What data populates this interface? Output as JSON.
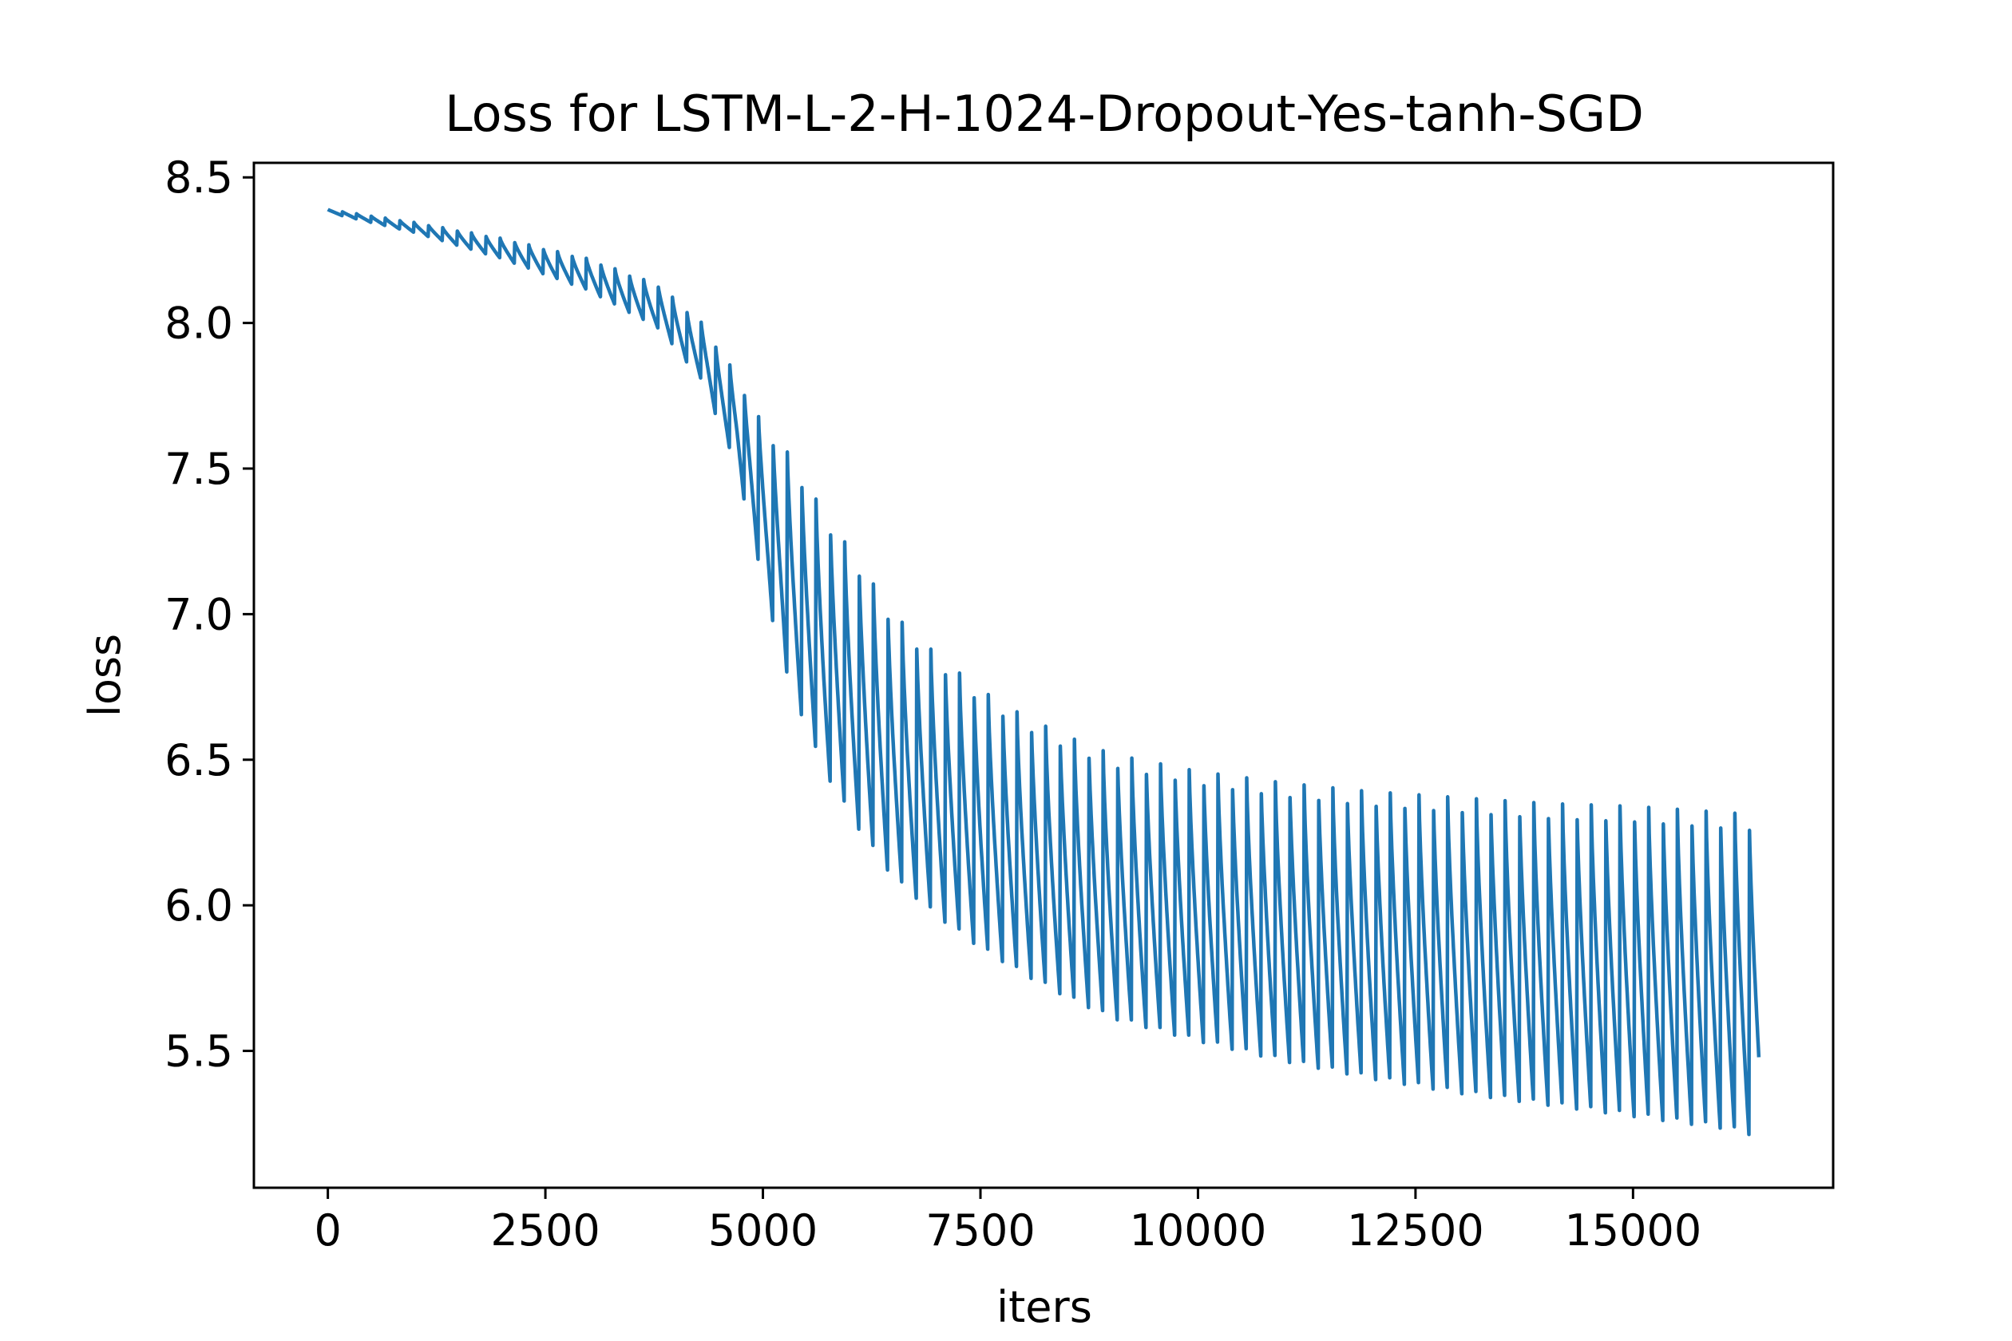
{
  "chart_data": {
    "type": "line",
    "title": "Loss for LSTM-L-2-H-1024-Dropout-Yes-tanh-SGD",
    "xlabel": "iters",
    "ylabel": "loss",
    "xlim": [
      -850,
      17300
    ],
    "ylim": [
      5.03,
      8.55
    ],
    "xticks": [
      0,
      2500,
      5000,
      7500,
      10000,
      12500,
      15000
    ],
    "xtick_labels": [
      "0",
      "2500",
      "5000",
      "7500",
      "10000",
      "12500",
      "15000"
    ],
    "yticks": [
      5.5,
      6.0,
      6.5,
      7.0,
      7.5,
      8.0,
      8.5
    ],
    "ytick_labels": [
      "5.5",
      "6.0",
      "6.5",
      "7.0",
      "7.5",
      "8.0",
      "8.5"
    ],
    "grid": false,
    "legend": "none",
    "series_color": "#1f77b4",
    "series": [
      {
        "description_of_shape": "oscillating loss",
        "x": [
          0,
          1000,
          2000,
          3000,
          3800,
          4300,
          4700,
          5000,
          5300,
          5700,
          6100,
          6500,
          7000,
          7500,
          8000,
          8500,
          9000,
          10000,
          11000,
          12000,
          13000,
          14000,
          15000,
          16000,
          16450
        ],
        "y_upper": [
          8.39,
          8.345,
          8.29,
          8.22,
          8.13,
          8.0,
          7.82,
          7.65,
          7.55,
          7.35,
          7.18,
          7.0,
          6.86,
          6.74,
          6.65,
          6.58,
          6.52,
          6.46,
          6.42,
          6.39,
          6.37,
          6.35,
          6.34,
          6.32,
          6.31
        ],
        "y_lower": [
          8.38,
          8.31,
          8.22,
          8.11,
          7.98,
          7.8,
          7.5,
          7.1,
          6.75,
          6.45,
          6.25,
          6.08,
          5.95,
          5.84,
          5.75,
          5.67,
          5.6,
          5.52,
          5.45,
          5.39,
          5.34,
          5.3,
          5.26,
          5.22,
          5.19
        ]
      }
    ]
  }
}
